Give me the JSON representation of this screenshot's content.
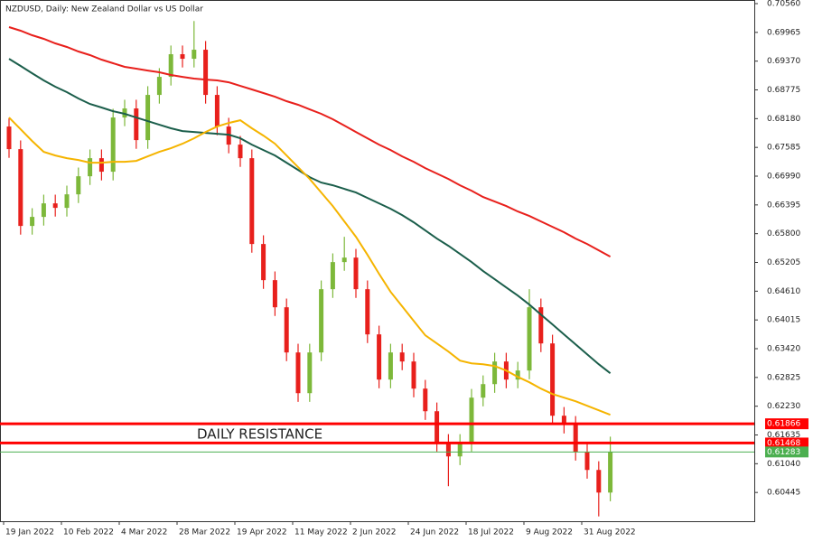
{
  "chart_data": {
    "type": "candlestick",
    "title": "NZDUSD, Daily:  New Zealand Dollar vs US Dollar",
    "annotation": "DAILY RESISTANCE",
    "categories": [
      "19 Jan 2022",
      null,
      null,
      null,
      null,
      "10 Feb 2022",
      null,
      null,
      null,
      null,
      "4 Mar 2022",
      null,
      null,
      null,
      null,
      "28 Mar 2022",
      null,
      null,
      null,
      null,
      "19 Apr 2022",
      null,
      null,
      null,
      null,
      "11 May 2022",
      null,
      null,
      null,
      null,
      "2 Jun 2022",
      null,
      null,
      null,
      null,
      "24 Jun 2022",
      null,
      null,
      null,
      null,
      "18 Jul 2022",
      null,
      null,
      null,
      null,
      "9 Aug 2022",
      null,
      null,
      null,
      null,
      "31 Aug 2022",
      null,
      null
    ],
    "open": [
      0.68017,
      0.67549,
      0.6596,
      0.66147,
      0.66427,
      0.66334,
      0.66614,
      0.66988,
      0.67362,
      0.67082,
      0.68204,
      0.68391,
      0.67736,
      0.68671,
      0.69045,
      0.69513,
      0.69419,
      0.69606,
      0.68671,
      0.68017,
      0.67643,
      0.67362,
      0.65586,
      0.64838,
      0.64277,
      0.63342,
      0.625,
      0.63342,
      0.64651,
      0.65212,
      0.65305,
      0.64651,
      0.63716,
      0.62781,
      0.63342,
      0.63155,
      0.62594,
      0.62126,
      0.61472,
      0.61191,
      0.61472,
      0.62407,
      0.62687,
      0.63155,
      0.62781,
      0.62968,
      0.64277,
      0.63529,
      0.62033,
      0.61846,
      0.61285,
      0.60911,
      0.60443
    ],
    "high": [
      0.68197,
      0.67729,
      0.66327,
      0.66607,
      0.66607,
      0.66794,
      0.67168,
      0.67542,
      0.67542,
      0.68384,
      0.68571,
      0.68571,
      0.68851,
      0.69225,
      0.69693,
      0.69693,
      0.702,
      0.69786,
      0.68851,
      0.68197,
      0.67823,
      0.67542,
      0.65766,
      0.65018,
      0.64457,
      0.63522,
      0.63522,
      0.64831,
      0.65392,
      0.65735,
      0.65485,
      0.64831,
      0.63896,
      0.63522,
      0.63522,
      0.63335,
      0.62774,
      0.62306,
      0.61652,
      0.61652,
      0.62587,
      0.62867,
      0.63335,
      0.63335,
      0.63148,
      0.64651,
      0.64457,
      0.63709,
      0.62213,
      0.62026,
      0.61465,
      0.61091,
      0.616
    ],
    "low": [
      0.67369,
      0.6578,
      0.6578,
      0.65967,
      0.66154,
      0.66154,
      0.66434,
      0.66808,
      0.66902,
      0.66902,
      0.68024,
      0.67556,
      0.67556,
      0.68491,
      0.68865,
      0.69239,
      0.69239,
      0.68491,
      0.67837,
      0.67463,
      0.67182,
      0.65406,
      0.64658,
      0.64097,
      0.63162,
      0.6232,
      0.6232,
      0.63162,
      0.64471,
      0.65032,
      0.64471,
      0.63536,
      0.62601,
      0.62601,
      0.62975,
      0.62414,
      0.61946,
      0.61292,
      0.60575,
      0.61011,
      0.61292,
      0.62227,
      0.62507,
      0.62601,
      0.62601,
      0.62788,
      0.63349,
      0.61853,
      0.61666,
      0.61105,
      0.60731,
      0.5995,
      0.60263
    ],
    "close": [
      0.67549,
      0.6596,
      0.66147,
      0.66427,
      0.66334,
      0.66614,
      0.66988,
      0.67362,
      0.67082,
      0.68204,
      0.68391,
      0.67736,
      0.68671,
      0.69045,
      0.69513,
      0.69419,
      0.69606,
      0.68671,
      0.68017,
      0.67643,
      0.67362,
      0.65586,
      0.64838,
      0.64277,
      0.63342,
      0.625,
      0.63342,
      0.64651,
      0.65212,
      0.65305,
      0.64651,
      0.63716,
      0.62781,
      0.63342,
      0.63155,
      0.62594,
      0.62126,
      0.61472,
      0.61191,
      0.61472,
      0.62407,
      0.62687,
      0.63155,
      0.62781,
      0.62968,
      0.64277,
      0.63529,
      0.62033,
      0.61846,
      0.61285,
      0.60911,
      0.60443,
      0.61283
    ],
    "up_color": "#7db83a",
    "down_color": "#e8201c",
    "series": [
      {
        "color": "#e8201c",
        "values": [
          0.70074,
          0.69999,
          0.69906,
          0.69831,
          0.69737,
          0.69663,
          0.69569,
          0.69494,
          0.69401,
          0.69326,
          0.69251,
          0.69214,
          0.69176,
          0.69139,
          0.69083,
          0.69045,
          0.69008,
          0.68989,
          0.68971,
          0.68933,
          0.68858,
          0.68784,
          0.68709,
          0.68634,
          0.68541,
          0.68466,
          0.68372,
          0.68279,
          0.68167,
          0.68036,
          0.67905,
          0.67774,
          0.67643,
          0.67531,
          0.674,
          0.67288,
          0.67157,
          0.67045,
          0.66932,
          0.66801,
          0.66689,
          0.66558,
          0.66465,
          0.66371,
          0.66259,
          0.66166,
          0.66053,
          0.65941,
          0.65829,
          0.65698,
          0.65586,
          0.65455,
          0.65324
        ]
      },
      {
        "color": "#1b5e4b",
        "values": [
          0.69419,
          0.6927,
          0.6912,
          0.68971,
          0.6884,
          0.68728,
          0.68597,
          0.68484,
          0.6841,
          0.68335,
          0.68279,
          0.68204,
          0.68129,
          0.68054,
          0.6798,
          0.67923,
          0.67905,
          0.67886,
          0.67867,
          0.67849,
          0.67774,
          0.67643,
          0.67531,
          0.67419,
          0.67269,
          0.67119,
          0.6697,
          0.66858,
          0.66801,
          0.66727,
          0.66652,
          0.6654,
          0.66427,
          0.66315,
          0.66184,
          0.66035,
          0.65866,
          0.65698,
          0.65549,
          0.6538,
          0.65212,
          0.65025,
          0.64857,
          0.64688,
          0.6452,
          0.64333,
          0.64127,
          0.63922,
          0.63716,
          0.6351,
          0.63305,
          0.63099,
          0.62912
        ]
      },
      {
        "color": "#f5b400",
        "values": [
          0.68204,
          0.67961,
          0.67718,
          0.67493,
          0.67419,
          0.67362,
          0.67325,
          0.67269,
          0.67269,
          0.67288,
          0.67288,
          0.67306,
          0.674,
          0.67493,
          0.67568,
          0.67662,
          0.67774,
          0.67905,
          0.68017,
          0.68092,
          0.68148,
          0.6798,
          0.6783,
          0.67662,
          0.67419,
          0.67175,
          0.66932,
          0.66652,
          0.66371,
          0.66053,
          0.65736,
          0.65362,
          0.64969,
          0.64595,
          0.64296,
          0.63996,
          0.63697,
          0.63529,
          0.63361,
          0.63174,
          0.63118,
          0.63099,
          0.63061,
          0.62968,
          0.62837,
          0.62725,
          0.62594,
          0.62482,
          0.62407,
          0.62332,
          0.62239,
          0.62145,
          0.62052
        ]
      }
    ],
    "levels": [
      {
        "value": 0.61866,
        "color": "#ff0000"
      },
      {
        "value": 0.61468,
        "color": "#ff0000"
      },
      {
        "value": 0.61283,
        "color": "#4caf50"
      }
    ],
    "ylim": [
      0.5985,
      0.70635
    ],
    "yticks": [
      {
        "value": 0.7056,
        "label": "0.70560"
      },
      0.69965,
      {
        "value": 0.6937,
        "label": "0.69370"
      },
      0.68775,
      {
        "value": 0.6818,
        "label": "0.68180"
      },
      0.67585,
      {
        "value": 0.6699,
        "label": "0.66990"
      },
      0.66395,
      {
        "value": 0.658,
        "label": "0.65800"
      },
      0.65205,
      {
        "value": 0.6461,
        "label": "0.64610"
      },
      0.64015,
      {
        "value": 0.6342,
        "label": "0.63420"
      },
      0.62825,
      {
        "value": 0.6223,
        "label": "0.62230"
      },
      0.61635,
      {
        "value": 0.6104,
        "label": "0.61040"
      },
      0.60445
    ]
  }
}
